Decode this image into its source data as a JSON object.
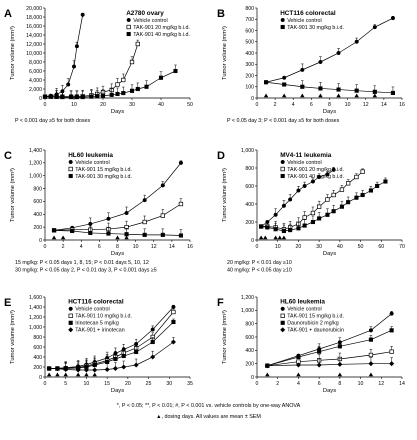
{
  "figure": {
    "footnote_line1": "*, P < 0.05; **, P < 0.01; #, P < 0.001 vs. vehicle controls by one-way ANOVA",
    "footnote_line2": "▲, dosing days. All values are mean ± SEM",
    "colors": {
      "ink": "#000000",
      "background": "#ffffff"
    }
  },
  "chart_data": [
    {
      "panel": "A",
      "type": "line",
      "title": "A2780 ovary",
      "xlabel": "Days",
      "ylabel": "Tumor volume (mm³)",
      "xlim": [
        0,
        50
      ],
      "ylim": [
        0,
        20000
      ],
      "xticks": [
        0,
        10,
        20,
        30,
        40,
        50
      ],
      "yticks": [
        0,
        2000,
        4000,
        6000,
        8000,
        10000,
        12000,
        14000,
        16000,
        18000,
        20000
      ],
      "dosing_days": [
        2,
        4,
        6,
        9,
        11,
        13
      ],
      "series": [
        {
          "name": "Vehicle control",
          "marker": "circle-filled",
          "x": [
            0,
            2,
            4,
            6,
            8,
            10,
            11,
            13
          ],
          "y": [
            300,
            500,
            800,
            1500,
            3000,
            7000,
            11500,
            18500
          ]
        },
        {
          "name": "TAK-901 20 mg/kg b.i.d.",
          "marker": "square-open",
          "x": [
            0,
            2,
            4,
            6,
            9,
            11,
            13,
            16,
            18,
            20,
            23,
            25,
            27,
            30,
            32
          ],
          "y": [
            300,
            300,
            300,
            300,
            300,
            300,
            400,
            600,
            900,
            1300,
            1800,
            3000,
            4000,
            8000,
            12000
          ]
        },
        {
          "name": "TAK-901 40 mg/kg b.i.d.",
          "marker": "square-filled",
          "x": [
            0,
            2,
            4,
            6,
            9,
            11,
            13,
            16,
            18,
            20,
            23,
            25,
            27,
            30,
            32,
            35,
            40,
            45
          ],
          "y": [
            300,
            300,
            250,
            200,
            200,
            200,
            200,
            300,
            400,
            500,
            700,
            900,
            1100,
            1600,
            2000,
            2500,
            4500,
            6000
          ]
        }
      ],
      "notes": [
        "P < 0.001 day ≥5 for both doses"
      ]
    },
    {
      "panel": "B",
      "type": "line",
      "title": "HCT116 colorectal",
      "xlabel": "Days",
      "ylabel": "Tumor volume (mm³)",
      "xlim": [
        0,
        16
      ],
      "ylim": [
        0,
        800
      ],
      "xticks": [
        0,
        2,
        4,
        6,
        8,
        10,
        12,
        14,
        16
      ],
      "yticks": [
        0,
        100,
        200,
        300,
        400,
        500,
        600,
        700,
        800
      ],
      "dosing_days": [
        1,
        3,
        5,
        7,
        9,
        11,
        13
      ],
      "series": [
        {
          "name": "Vehicle control",
          "marker": "circle-filled",
          "x": [
            1,
            3,
            5,
            7,
            9,
            11,
            13,
            15
          ],
          "y": [
            140,
            180,
            250,
            320,
            400,
            500,
            630,
            710
          ]
        },
        {
          "name": "TAK-901 30 mg/kg b.i.d.",
          "marker": "square-filled",
          "x": [
            1,
            3,
            5,
            7,
            9,
            11,
            13,
            15
          ],
          "y": [
            140,
            120,
            100,
            85,
            75,
            65,
            55,
            45
          ]
        }
      ],
      "notes": [
        "P < 0.05 day 3; P < 0.001 day ≥5 for both doses"
      ]
    },
    {
      "panel": "C",
      "type": "line",
      "title": "HL60 leukemia",
      "xlabel": "Days",
      "ylabel": "Tumor volume (mm³)",
      "xlim": [
        0,
        16
      ],
      "ylim": [
        0,
        1400
      ],
      "xticks": [
        0,
        2,
        4,
        6,
        8,
        10,
        12,
        14,
        16
      ],
      "yticks": [
        0,
        200,
        400,
        600,
        800,
        1000,
        1200,
        1400
      ],
      "dosing_days": [
        1,
        2,
        8,
        9
      ],
      "series": [
        {
          "name": "Vehicle control",
          "marker": "circle-filled",
          "x": [
            1,
            3,
            5,
            7,
            9,
            11,
            13,
            15
          ],
          "y": [
            150,
            190,
            250,
            330,
            420,
            620,
            850,
            1200
          ]
        },
        {
          "name": "TAK-901 15 mg/kg b.i.d.",
          "marker": "square-open",
          "x": [
            1,
            3,
            5,
            7,
            9,
            11,
            13,
            15
          ],
          "y": [
            150,
            160,
            160,
            170,
            200,
            280,
            380,
            560
          ]
        },
        {
          "name": "TAK-901 30 mg/kg b.i.d.",
          "marker": "square-filled",
          "x": [
            1,
            3,
            5,
            7,
            9,
            11,
            13,
            15
          ],
          "y": [
            150,
            140,
            110,
            100,
            90,
            80,
            80,
            70
          ]
        }
      ],
      "notes": [
        "15 mg/kg: P < 0.05 days 1, 8, 15; P < 0.01 days 5, 10, 12",
        "30 mg/kg: P < 0.05 day 2, P < 0.01 day 3, P < 0.001 days ≥5"
      ]
    },
    {
      "panel": "D",
      "type": "line",
      "title": "MV4-11 leukemia",
      "xlabel": "Days",
      "ylabel": "Tumor volume (mm³)",
      "xlim": [
        0,
        70
      ],
      "ylim": [
        0,
        1000
      ],
      "xticks": [
        0,
        10,
        20,
        30,
        40,
        50,
        60,
        70
      ],
      "yticks": [
        0,
        200,
        400,
        600,
        800,
        1000
      ],
      "dosing_days": [
        2,
        4,
        9,
        11,
        13
      ],
      "series": [
        {
          "name": "Vehicle control",
          "marker": "circle-filled",
          "x": [
            2,
            5,
            9,
            13,
            16,
            20,
            23,
            27,
            30,
            34,
            37
          ],
          "y": [
            150,
            200,
            280,
            380,
            450,
            550,
            600,
            650,
            700,
            730,
            780
          ]
        },
        {
          "name": "TAK-901 20 mg/kg b.i.d.",
          "marker": "square-open",
          "x": [
            2,
            5,
            9,
            13,
            16,
            20,
            23,
            27,
            30,
            34,
            37,
            41,
            44,
            48,
            51
          ],
          "y": [
            150,
            150,
            140,
            120,
            140,
            180,
            250,
            300,
            370,
            450,
            500,
            560,
            630,
            700,
            760
          ]
        },
        {
          "name": "TAK-901 40 mg/kg b.i.d.",
          "marker": "square-filled",
          "x": [
            2,
            5,
            9,
            13,
            16,
            20,
            23,
            27,
            30,
            34,
            37,
            41,
            44,
            48,
            51,
            55,
            58,
            62
          ],
          "y": [
            150,
            140,
            120,
            100,
            110,
            130,
            160,
            200,
            240,
            280,
            320,
            370,
            420,
            470,
            500,
            550,
            600,
            650
          ]
        }
      ],
      "notes": [
        "20 mg/kg: P < 0.01 day ≥10",
        "40 mg/kg: P < 0.05 day ≥10"
      ]
    },
    {
      "panel": "E",
      "type": "line",
      "title": "HCT116 colorectal",
      "xlabel": "Days",
      "ylabel": "Tumor volume (mm³)",
      "xlim": [
        0,
        35
      ],
      "ylim": [
        0,
        1600
      ],
      "xticks": [
        0,
        5,
        10,
        15,
        20,
        25,
        30,
        35
      ],
      "yticks": [
        0,
        200,
        400,
        600,
        800,
        1000,
        1200,
        1400,
        1600
      ],
      "dosing_days": [
        1,
        3,
        5,
        8,
        10,
        12
      ],
      "series": [
        {
          "name": "Vehicle control",
          "marker": "circle-filled",
          "x": [
            1,
            3,
            5,
            8,
            10,
            12,
            15,
            17,
            19,
            22,
            26,
            31
          ],
          "y": [
            170,
            175,
            185,
            210,
            250,
            300,
            380,
            470,
            550,
            660,
            950,
            1400
          ]
        },
        {
          "name": "TAK-901 10 mg/kg b.i.d.",
          "marker": "square-open",
          "x": [
            1,
            3,
            5,
            8,
            10,
            12,
            15,
            17,
            19,
            22,
            26,
            31
          ],
          "y": [
            170,
            170,
            175,
            190,
            220,
            260,
            330,
            400,
            480,
            580,
            800,
            1300
          ]
        },
        {
          "name": "Irinotecan 5 mg/kg",
          "marker": "square-filled",
          "x": [
            1,
            3,
            5,
            8,
            10,
            12,
            15,
            17,
            19,
            22,
            26,
            31
          ],
          "y": [
            170,
            170,
            170,
            180,
            200,
            240,
            300,
            360,
            420,
            500,
            700,
            1100
          ]
        },
        {
          "name": "TAK-901 + irinotecan",
          "marker": "diamond-filled",
          "x": [
            1,
            3,
            5,
            8,
            10,
            12,
            15,
            17,
            19,
            22,
            26,
            31
          ],
          "y": [
            170,
            165,
            150,
            140,
            140,
            140,
            150,
            170,
            200,
            240,
            400,
            700
          ]
        }
      ],
      "notes": []
    },
    {
      "panel": "F",
      "type": "line",
      "title": "HL60 leukemia",
      "xlabel": "Days",
      "ylabel": "Tumor volume (mm³)",
      "xlim": [
        0,
        14
      ],
      "ylim": [
        0,
        1200
      ],
      "xticks": [
        0,
        2,
        4,
        6,
        8,
        10,
        12,
        14
      ],
      "yticks": [
        0,
        200,
        400,
        600,
        800,
        1000,
        1200
      ],
      "dosing_days": [
        1,
        4,
        8,
        11
      ],
      "series": [
        {
          "name": "Vehicle control",
          "marker": "circle-filled",
          "x": [
            1,
            4,
            6,
            8,
            11,
            13
          ],
          "y": [
            170,
            320,
            420,
            520,
            700,
            950
          ]
        },
        {
          "name": "TAK-901 15 mg/kg b.i.d.",
          "marker": "square-open",
          "x": [
            1,
            4,
            6,
            8,
            11,
            13
          ],
          "y": [
            170,
            230,
            250,
            270,
            330,
            380
          ]
        },
        {
          "name": "Daunorubicin 2 mg/kg",
          "marker": "square-filled",
          "x": [
            1,
            4,
            6,
            8,
            11,
            13
          ],
          "y": [
            170,
            300,
            380,
            460,
            560,
            700
          ]
        },
        {
          "name": "TAK-901 + daunorubicin",
          "marker": "diamond-filled",
          "x": [
            1,
            4,
            6,
            8,
            11,
            13
          ],
          "y": [
            170,
            180,
            180,
            190,
            200,
            200
          ]
        }
      ],
      "notes": []
    }
  ]
}
